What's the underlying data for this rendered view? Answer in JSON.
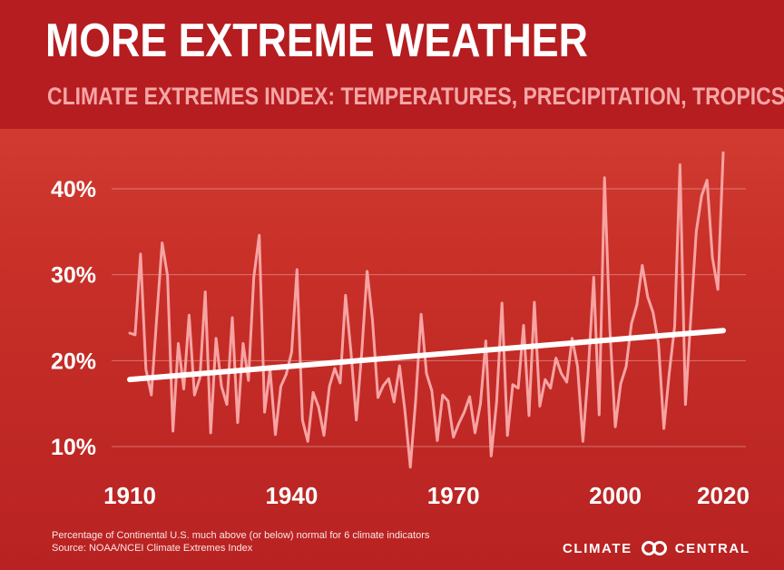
{
  "header": {
    "title": "MORE EXTREME WEATHER",
    "subtitle": "CLIMATE EXTREMES INDEX: TEMPERATURES, PRECIPITATION, TROPICS"
  },
  "footnote": {
    "line1": "Percentage of Continental U.S. much above (or below) normal for 6 climate indicators",
    "line2": "Source:  NOAA/NCEI Climate Extremes Index"
  },
  "brand": {
    "name_left": "CLIMATE",
    "name_right": "CENTRAL",
    "logo_icon": "interlocking-rings-icon"
  },
  "colors": {
    "header_bg": "#b51d20",
    "plot_bg_top": "#d9463a",
    "plot_bg_bottom": "#b82222",
    "series_line": "#f7a3a3",
    "trend_line": "#ffffff",
    "subtitle": "#f7a6a6"
  },
  "chart_data": {
    "type": "line",
    "title": "MORE EXTREME WEATHER",
    "subtitle": "CLIMATE EXTREMES INDEX: TEMPERATURES, PRECIPITATION, TROPICS",
    "xlabel": "",
    "ylabel": "",
    "xlim": [
      1910,
      2020
    ],
    "ylim": [
      10,
      40
    ],
    "x_ticks": [
      1910,
      1940,
      1970,
      2000,
      2020
    ],
    "x_tick_labels": [
      "1910",
      "1940",
      "1970",
      "2000",
      "2020"
    ],
    "y_ticks": [
      10,
      20,
      30,
      40
    ],
    "y_tick_labels": [
      "10%",
      "20%",
      "30%",
      "40%"
    ],
    "grid": "horizontal",
    "legend": "none",
    "series": [
      {
        "kind": "annual",
        "x": [
          1910,
          1911,
          1912,
          1913,
          1914,
          1915,
          1916,
          1917,
          1918,
          1919,
          1920,
          1921,
          1922,
          1923,
          1924,
          1925,
          1926,
          1927,
          1928,
          1929,
          1930,
          1931,
          1932,
          1933,
          1934,
          1935,
          1936,
          1937,
          1938,
          1939,
          1940,
          1941,
          1942,
          1943,
          1944,
          1945,
          1946,
          1947,
          1948,
          1949,
          1950,
          1951,
          1952,
          1953,
          1954,
          1955,
          1956,
          1957,
          1958,
          1959,
          1960,
          1961,
          1962,
          1963,
          1964,
          1965,
          1966,
          1967,
          1968,
          1969,
          1970,
          1971,
          1972,
          1973,
          1974,
          1975,
          1976,
          1977,
          1978,
          1979,
          1980,
          1981,
          1982,
          1983,
          1984,
          1985,
          1986,
          1987,
          1988,
          1989,
          1990,
          1991,
          1992,
          1993,
          1994,
          1995,
          1996,
          1997,
          1998,
          1999,
          2000,
          2001,
          2002,
          2003,
          2004,
          2005,
          2006,
          2007,
          2008,
          2009,
          2010,
          2011,
          2012,
          2013,
          2014,
          2015,
          2016,
          2017,
          2018,
          2019,
          2020
        ],
        "values": [
          23.2,
          23.0,
          32.4,
          19.0,
          16.0,
          25.0,
          33.7,
          29.9,
          11.8,
          22.0,
          16.7,
          25.3,
          16.0,
          18.0,
          28.0,
          11.6,
          22.6,
          17.0,
          14.9,
          25.0,
          12.8,
          22.0,
          17.7,
          29.7,
          34.6,
          14.0,
          19.0,
          11.4,
          17.0,
          18.4,
          21.0,
          30.6,
          13.1,
          10.6,
          16.3,
          14.6,
          11.3,
          17.0,
          19.1,
          17.4,
          27.6,
          21.0,
          13.1,
          21.0,
          30.4,
          24.7,
          15.7,
          17.1,
          17.9,
          15.2,
          19.4,
          14.2,
          7.6,
          15.4,
          25.4,
          18.5,
          16.5,
          10.7,
          16.0,
          15.3,
          11.1,
          12.7,
          14.0,
          15.8,
          11.6,
          15.0,
          22.3,
          8.9,
          15.2,
          26.7,
          11.3,
          17.2,
          16.8,
          24.1,
          13.6,
          26.8,
          14.7,
          17.8,
          16.8,
          20.3,
          18.5,
          17.5,
          22.6,
          19.3,
          10.6,
          19.0,
          29.7,
          13.7,
          41.3,
          23.7,
          12.3,
          17.3,
          19.3,
          24.3,
          26.5,
          31.1,
          27.4,
          25.6,
          22.0,
          12.1,
          18.5,
          24.0,
          42.8,
          14.9,
          25.0,
          35.0,
          39.2,
          41.0,
          32.0,
          28.3,
          44.2
        ]
      },
      {
        "kind": "trend",
        "x": [
          1910,
          2020
        ],
        "values": [
          17.8,
          23.5
        ]
      }
    ]
  }
}
